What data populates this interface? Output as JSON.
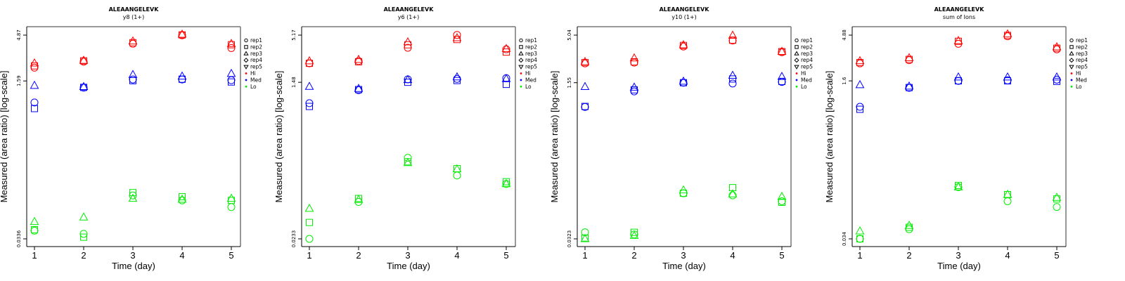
{
  "chart_data": [
    {
      "type": "scatter",
      "title": "ALEAANGELEVK",
      "subtitle": "y8 (1+)",
      "xlabel": "Time (day)",
      "ylabel": "Measured (area ratio) [log-scale]",
      "y_scale": "log",
      "x_ticks": [
        "1",
        "2",
        "3",
        "4",
        "5"
      ],
      "y_ticks": [
        "0.0336",
        "1.59",
        "4.87"
      ],
      "y_tick_values": [
        0.0336,
        1.59,
        4.87
      ],
      "legend": {
        "shapes": [
          "rep1",
          "rep2",
          "rep3",
          "rep4",
          "rep5"
        ],
        "groups": [
          "Hi",
          "Med",
          "Lo"
        ],
        "placement": "right"
      },
      "series": [
        {
          "group": "Hi",
          "rep": "rep1",
          "x": [
            1,
            2,
            3,
            4,
            5
          ],
          "y": [
            2.2,
            2.55,
            3.95,
            4.85,
            3.55
          ]
        },
        {
          "group": "Hi",
          "rep": "rep2",
          "x": [
            1,
            2,
            3,
            4,
            5
          ],
          "y": [
            2.3,
            2.6,
            4.05,
            4.9,
            3.85
          ]
        },
        {
          "group": "Hi",
          "rep": "rep3",
          "x": [
            1,
            2,
            3,
            4,
            5
          ],
          "y": [
            2.45,
            2.62,
            4.2,
            4.95,
            3.95
          ]
        },
        {
          "group": "Med",
          "rep": "rep1",
          "x": [
            1,
            2,
            3,
            4,
            5
          ],
          "y": [
            0.94,
            1.35,
            1.65,
            1.65,
            1.62
          ]
        },
        {
          "group": "Med",
          "rep": "rep2",
          "x": [
            1,
            2,
            3,
            4,
            5
          ],
          "y": [
            0.81,
            1.36,
            1.6,
            1.66,
            1.55
          ]
        },
        {
          "group": "Med",
          "rep": "rep3",
          "x": [
            1,
            2,
            3,
            4,
            5
          ],
          "y": [
            1.42,
            1.38,
            1.85,
            1.78,
            1.9
          ]
        },
        {
          "group": "Lo",
          "rep": "rep1",
          "x": [
            1,
            2,
            3,
            4,
            5
          ],
          "y": [
            0.041,
            0.038,
            0.097,
            0.086,
            0.073
          ]
        },
        {
          "group": "Lo",
          "rep": "rep2",
          "x": [
            1,
            2,
            3,
            4,
            5
          ],
          "y": [
            0.042,
            0.035,
            0.104,
            0.094,
            0.086
          ]
        },
        {
          "group": "Lo",
          "rep": "rep3",
          "x": [
            1,
            2,
            3,
            4,
            5
          ],
          "y": [
            0.051,
            0.057,
            0.09,
            0.088,
            0.09
          ]
        }
      ]
    },
    {
      "type": "scatter",
      "title": "ALEAANGELEVK",
      "subtitle": "y6 (1+)",
      "xlabel": "Time (day)",
      "ylabel": "Measured (area ratio) [log-scale]",
      "y_scale": "log",
      "x_ticks": [
        "1",
        "2",
        "3",
        "4",
        "5"
      ],
      "y_ticks": [
        "0.0233",
        "1.48",
        "5.17"
      ],
      "y_tick_values": [
        0.0233,
        1.48,
        5.17
      ],
      "legend": {
        "shapes": [
          "rep1",
          "rep2",
          "rep3",
          "rep4",
          "rep5"
        ],
        "groups": [
          "Hi",
          "Med",
          "Lo"
        ],
        "placement": "right"
      },
      "series": [
        {
          "group": "Hi",
          "rep": "rep1",
          "x": [
            1,
            2,
            3,
            4,
            5
          ],
          "y": [
            2.45,
            2.6,
            3.7,
            5.2,
            3.55
          ]
        },
        {
          "group": "Hi",
          "rep": "rep2",
          "x": [
            1,
            2,
            3,
            4,
            5
          ],
          "y": [
            2.45,
            2.55,
            4.0,
            4.6,
            3.3
          ]
        },
        {
          "group": "Hi",
          "rep": "rep3",
          "x": [
            1,
            2,
            3,
            4,
            5
          ],
          "y": [
            2.6,
            2.7,
            4.3,
            4.8,
            3.6
          ]
        },
        {
          "group": "Med",
          "rep": "rep1",
          "x": [
            1,
            2,
            3,
            4,
            5
          ],
          "y": [
            0.85,
            1.2,
            1.6,
            1.62,
            1.65
          ]
        },
        {
          "group": "Med",
          "rep": "rep2",
          "x": [
            1,
            2,
            3,
            4,
            5
          ],
          "y": [
            0.78,
            1.22,
            1.48,
            1.55,
            1.4
          ]
        },
        {
          "group": "Med",
          "rep": "rep3",
          "x": [
            1,
            2,
            3,
            4,
            5
          ],
          "y": [
            1.32,
            1.25,
            1.58,
            1.7,
            1.62
          ]
        },
        {
          "group": "Lo",
          "rep": "rep1",
          "x": [
            1,
            2,
            3,
            4,
            5
          ],
          "y": [
            0.0233,
            0.062,
            0.2,
            0.125,
            0.1
          ]
        },
        {
          "group": "Lo",
          "rep": "rep2",
          "x": [
            1,
            2,
            3,
            4,
            5
          ],
          "y": [
            0.036,
            0.068,
            0.18,
            0.15,
            0.106
          ]
        },
        {
          "group": "Lo",
          "rep": "rep3",
          "x": [
            1,
            2,
            3,
            4,
            5
          ],
          "y": [
            0.052,
            0.066,
            0.175,
            0.148,
            0.1
          ]
        }
      ]
    },
    {
      "type": "scatter",
      "title": "ALEAANGELEVK",
      "subtitle": "y10 (1+)",
      "xlabel": "Time (day)",
      "ylabel": "Measured (area ratio) [log-scale]",
      "y_scale": "log",
      "x_ticks": [
        "1",
        "2",
        "3",
        "4",
        "5"
      ],
      "y_ticks": [
        "0.0323",
        "1.55",
        "5.04"
      ],
      "y_tick_values": [
        0.0323,
        1.55,
        5.04
      ],
      "legend": {
        "shapes": [
          "rep1",
          "rep2",
          "rep3",
          "rep4",
          "rep5"
        ],
        "groups": [
          "Hi",
          "Med",
          "Lo"
        ],
        "placement": "right"
      },
      "series": [
        {
          "group": "Hi",
          "rep": "rep1",
          "x": [
            1,
            2,
            3,
            4,
            5
          ],
          "y": [
            2.5,
            2.55,
            3.8,
            4.4,
            3.3
          ]
        },
        {
          "group": "Hi",
          "rep": "rep2",
          "x": [
            1,
            2,
            3,
            4,
            5
          ],
          "y": [
            2.55,
            2.6,
            3.9,
            4.45,
            3.35
          ]
        },
        {
          "group": "Hi",
          "rep": "rep3",
          "x": [
            1,
            2,
            3,
            4,
            5
          ],
          "y": [
            2.6,
            2.85,
            3.95,
            5.0,
            3.35
          ]
        },
        {
          "group": "Med",
          "rep": "rep1",
          "x": [
            1,
            2,
            3,
            4,
            5
          ],
          "y": [
            0.85,
            1.25,
            1.55,
            1.52,
            1.58
          ]
        },
        {
          "group": "Med",
          "rep": "rep2",
          "x": [
            1,
            2,
            3,
            4,
            5
          ],
          "y": [
            0.86,
            1.3,
            1.55,
            1.7,
            1.6
          ]
        },
        {
          "group": "Med",
          "rep": "rep3",
          "x": [
            1,
            2,
            3,
            4,
            5
          ],
          "y": [
            1.4,
            1.38,
            1.6,
            1.85,
            1.8
          ]
        },
        {
          "group": "Lo",
          "rep": "rep1",
          "x": [
            1,
            2,
            3,
            4,
            5
          ],
          "y": [
            0.038,
            0.036,
            0.1,
            0.095,
            0.082
          ]
        },
        {
          "group": "Lo",
          "rep": "rep2",
          "x": [
            1,
            2,
            3,
            4,
            5
          ],
          "y": [
            0.033,
            0.038,
            0.1,
            0.115,
            0.08
          ]
        },
        {
          "group": "Lo",
          "rep": "rep3",
          "x": [
            1,
            2,
            3,
            4,
            5
          ],
          "y": [
            0.0323,
            0.035,
            0.108,
            0.098,
            0.092
          ]
        }
      ]
    },
    {
      "type": "scatter",
      "title": "ALEAANGELEVK",
      "subtitle": "sum of Ions",
      "xlabel": "Time (day)",
      "ylabel": "Measured (area ratio) [log-scale]",
      "y_scale": "log",
      "x_ticks": [
        "1",
        "2",
        "3",
        "4",
        "5"
      ],
      "y_ticks": [
        "0.034",
        "1.6",
        "4.88"
      ],
      "y_tick_values": [
        0.034,
        1.6,
        4.88
      ],
      "legend": {
        "shapes": [
          "rep1",
          "rep2",
          "rep3",
          "rep4",
          "rep5"
        ],
        "groups": [
          "Hi",
          "Med",
          "Lo"
        ],
        "placement": "right"
      },
      "series": [
        {
          "group": "Hi",
          "rep": "rep1",
          "x": [
            1,
            2,
            3,
            4,
            5
          ],
          "y": [
            2.45,
            2.65,
            3.95,
            4.75,
            3.45
          ]
        },
        {
          "group": "Hi",
          "rep": "rep2",
          "x": [
            1,
            2,
            3,
            4,
            5
          ],
          "y": [
            2.5,
            2.7,
            4.2,
            4.85,
            3.55
          ]
        },
        {
          "group": "Hi",
          "rep": "rep3",
          "x": [
            1,
            2,
            3,
            4,
            5
          ],
          "y": [
            2.6,
            2.8,
            4.25,
            5.0,
            3.65
          ]
        },
        {
          "group": "Med",
          "rep": "rep1",
          "x": [
            1,
            2,
            3,
            4,
            5
          ],
          "y": [
            0.85,
            1.35,
            1.6,
            1.62,
            1.65
          ]
        },
        {
          "group": "Med",
          "rep": "rep2",
          "x": [
            1,
            2,
            3,
            4,
            5
          ],
          "y": [
            0.8,
            1.36,
            1.6,
            1.6,
            1.58
          ]
        },
        {
          "group": "Med",
          "rep": "rep3",
          "x": [
            1,
            2,
            3,
            4,
            5
          ],
          "y": [
            1.45,
            1.4,
            1.75,
            1.75,
            1.75
          ]
        },
        {
          "group": "Lo",
          "rep": "rep1",
          "x": [
            1,
            2,
            3,
            4,
            5
          ],
          "y": [
            0.034,
            0.043,
            0.12,
            0.085,
            0.074
          ]
        },
        {
          "group": "Lo",
          "rep": "rep2",
          "x": [
            1,
            2,
            3,
            4,
            5
          ],
          "y": [
            0.034,
            0.045,
            0.125,
            0.1,
            0.09
          ]
        },
        {
          "group": "Lo",
          "rep": "rep3",
          "x": [
            1,
            2,
            3,
            4,
            5
          ],
          "y": [
            0.041,
            0.047,
            0.12,
            0.1,
            0.093
          ]
        }
      ]
    }
  ],
  "colors": {
    "Hi": "#ff0000",
    "Med": "#0000ff",
    "Lo": "#00ee00"
  }
}
